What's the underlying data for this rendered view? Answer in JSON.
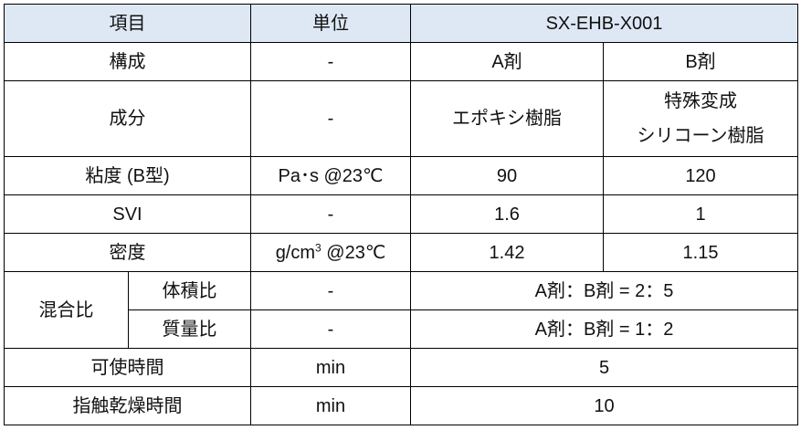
{
  "header": {
    "item": "項目",
    "unit": "単位",
    "product": "SX-EHB-X001"
  },
  "rows": {
    "composition": {
      "label": "構成",
      "unit": "-",
      "a": "A剤",
      "b": "B剤"
    },
    "component": {
      "label": "成分",
      "unit": "-",
      "a": "エポキシ樹脂",
      "b_line1": "特殊変成",
      "b_line2": "シリコーン樹脂"
    },
    "viscosity": {
      "label": "粘度 (B型)",
      "unit": "Pa･s @23℃",
      "a": "90",
      "b": "120"
    },
    "svi": {
      "label": "SVI",
      "unit": "-",
      "a": "1.6",
      "b": "1"
    },
    "density": {
      "label": "密度",
      "unit_main": "g/cm",
      "unit_sup": "3",
      "unit_suffix": " @23℃",
      "a": "1.42",
      "b": "1.15"
    },
    "mix": {
      "label": "混合比",
      "volume": {
        "label": "体積比",
        "unit": "-",
        "value": "A剤：B剤 = 2：5"
      },
      "mass": {
        "label": "質量比",
        "unit": "-",
        "value": "A剤：B剤 = 1：2"
      }
    },
    "pot_life": {
      "label": "可使時間",
      "unit": "min",
      "value": "5"
    },
    "tack_free": {
      "label": "指触乾燥時間",
      "unit": "min",
      "value": "10"
    }
  },
  "colors": {
    "header_bg": "#dee8f5",
    "border": "#000000"
  }
}
